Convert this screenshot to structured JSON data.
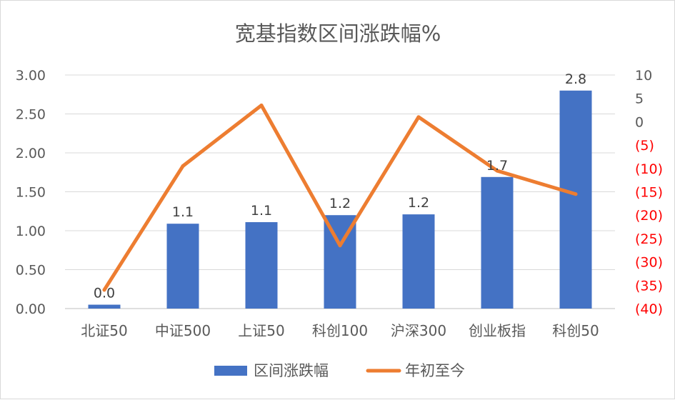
{
  "chart_data": {
    "type": "bar+line",
    "title": "宽基指数区间涨跌幅%",
    "categories": [
      "北证50",
      "中证500",
      "上证50",
      "科创100",
      "沪深300",
      "创业板指",
      "科创50"
    ],
    "series": [
      {
        "name": "区间涨跌幅",
        "type": "bar",
        "axis": "left",
        "color": "#4472c4",
        "values": [
          0.05,
          1.09,
          1.11,
          1.2,
          1.21,
          1.69,
          2.8
        ],
        "data_labels": [
          "0.0",
          "1.1",
          "1.1",
          "1.2",
          "1.2",
          "1.7",
          "2.8"
        ]
      },
      {
        "name": "年初至今",
        "type": "line",
        "axis": "right",
        "color": "#ed7d31",
        "values": [
          -36,
          -9.5,
          3.5,
          -26.5,
          1,
          -10.5,
          -15.5
        ]
      }
    ],
    "left_axis": {
      "ylim": [
        0,
        3
      ],
      "ticks": [
        0,
        0.5,
        1,
        1.5,
        2,
        2.5,
        3
      ],
      "tick_labels": [
        "0.00",
        "0.50",
        "1.00",
        "1.50",
        "2.00",
        "2.50",
        "3.00"
      ]
    },
    "right_axis": {
      "ylim": [
        -40,
        10
      ],
      "ticks": [
        10,
        5,
        0,
        -5,
        -10,
        -15,
        -20,
        -25,
        -30,
        -35,
        -40
      ],
      "tick_labels": [
        "10",
        "5",
        "0",
        "(5)",
        "(10)",
        "(15)",
        "(20)",
        "(25)",
        "(30)",
        "(35)",
        "(40)"
      ],
      "negative_color": "#ff0000",
      "positive_color": "#595959"
    },
    "grid": true,
    "legend_position": "bottom"
  }
}
